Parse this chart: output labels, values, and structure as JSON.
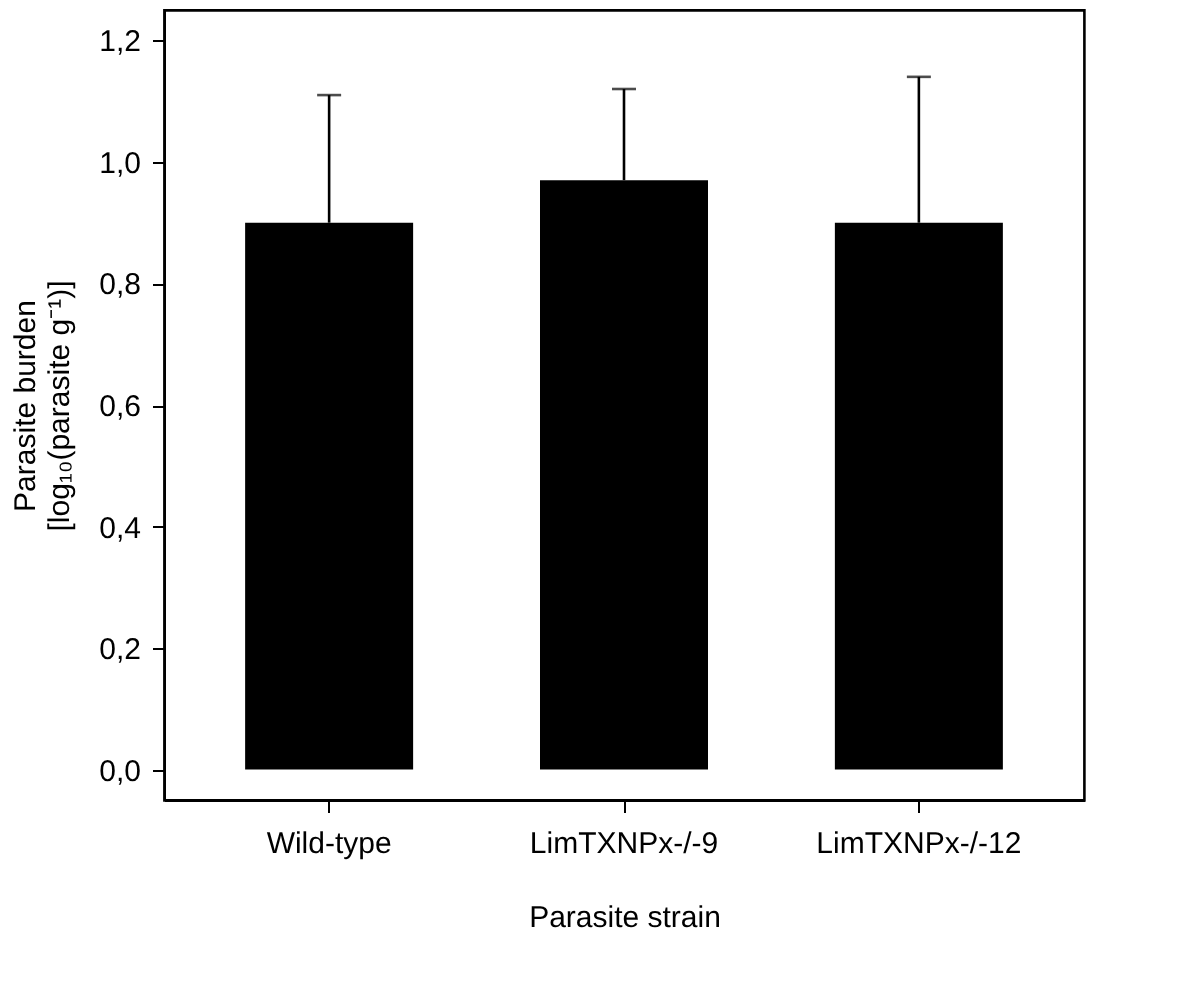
{
  "chart_data": {
    "type": "bar",
    "xlabel": "Parasite strain",
    "ylabel": "Parasite burden\n[log₁₀(parasite g⁻¹)]",
    "categories": [
      "Wild-type",
      "LimTXNPx-/-9",
      "LimTXNPx-/-12"
    ],
    "values": [
      0.9,
      0.97,
      0.9
    ],
    "color": "#000000",
    "errors": [
      [
        0.9,
        1.11
      ],
      [
        0.97,
        1.12
      ],
      [
        0.9,
        1.14
      ]
    ],
    "ylim": [
      -0.05,
      1.25
    ],
    "yticks": [
      {
        "value": 0,
        "label": "0,0"
      },
      {
        "value": 0.2,
        "label": "0,2"
      },
      {
        "value": 0.4,
        "label": "0,4"
      },
      {
        "value": 0.6,
        "label": "0,6"
      },
      {
        "value": 0.8,
        "label": "0,8"
      },
      {
        "value": 1.0,
        "label": "1,0"
      },
      {
        "value": 1.2,
        "label": "1,2"
      }
    ],
    "grid": false
  }
}
